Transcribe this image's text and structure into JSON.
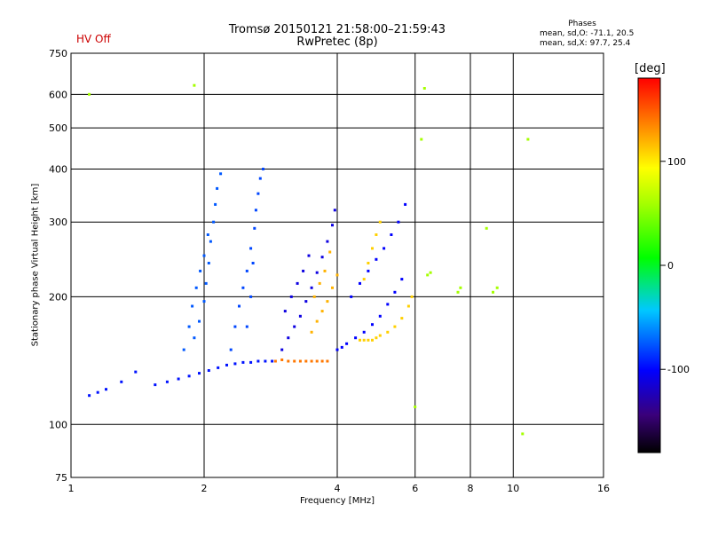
{
  "header": {
    "title_line1": "Tromsø 20150121 21:58:00–21:59:43",
    "title_line2": "RwPretec (8p)",
    "hv_status": "HV Off",
    "phase_title": "Phases",
    "phase_o": "mean, sd,O: -71.1, 20.5",
    "phase_x": "mean, sd,X:  97.7, 25.4"
  },
  "colorbar": {
    "unit": "[deg]",
    "ticks": [
      100,
      0,
      -100
    ],
    "range": [
      -180,
      180
    ],
    "colormap": "rainbow"
  },
  "chart_data": {
    "type": "scatter",
    "title": "Tromsø 20150121 21:58:00–21:59:43",
    "subtitle": "RwPretec (8p)",
    "xlabel": "Frequency [MHz]",
    "ylabel": "Stationary phase Virtual Height [km]",
    "x_scale": "log",
    "y_scale": "log",
    "xlim": [
      1,
      16
    ],
    "ylim": [
      75,
      750
    ],
    "x_ticks": [
      1,
      2,
      4,
      6,
      8,
      10,
      16
    ],
    "y_ticks": [
      75,
      100,
      200,
      300,
      400,
      500,
      600,
      750
    ],
    "grid": true,
    "series": [
      {
        "points": [
          [
            1.1,
            117
          ],
          [
            1.15,
            119
          ],
          [
            1.2,
            121
          ],
          [
            1.3,
            126
          ],
          [
            1.4,
            133
          ],
          [
            1.55,
            124
          ],
          [
            1.65,
            126
          ],
          [
            1.75,
            128
          ],
          [
            1.85,
            130
          ],
          [
            1.95,
            132
          ],
          [
            2.05,
            134
          ],
          [
            2.15,
            136
          ],
          [
            2.25,
            138
          ],
          [
            2.35,
            139
          ],
          [
            2.45,
            140
          ],
          [
            2.55,
            140
          ],
          [
            2.65,
            141
          ],
          [
            2.75,
            141
          ],
          [
            2.85,
            141
          ]
        ],
        "phase": -95
      },
      {
        "points": [
          [
            1.9,
            160
          ],
          [
            1.95,
            175
          ],
          [
            2.0,
            195
          ],
          [
            2.02,
            215
          ],
          [
            2.05,
            240
          ],
          [
            2.07,
            270
          ],
          [
            2.1,
            300
          ],
          [
            2.12,
            330
          ],
          [
            2.14,
            360
          ],
          [
            2.18,
            390
          ],
          [
            1.8,
            150
          ],
          [
            1.85,
            170
          ],
          [
            1.88,
            190
          ],
          [
            1.92,
            210
          ],
          [
            1.96,
            230
          ],
          [
            2.0,
            250
          ],
          [
            2.04,
            280
          ]
        ],
        "phase": -75
      },
      {
        "points": [
          [
            2.3,
            150
          ],
          [
            2.35,
            170
          ],
          [
            2.4,
            190
          ],
          [
            2.45,
            210
          ],
          [
            2.5,
            230
          ],
          [
            2.55,
            260
          ],
          [
            2.6,
            290
          ],
          [
            2.62,
            320
          ],
          [
            2.65,
            350
          ],
          [
            2.68,
            380
          ],
          [
            2.72,
            400
          ],
          [
            2.5,
            170
          ],
          [
            2.55,
            200
          ],
          [
            2.58,
            240
          ]
        ],
        "phase": -80
      },
      {
        "points": [
          [
            2.9,
            141
          ],
          [
            3.0,
            142
          ],
          [
            3.1,
            141
          ],
          [
            3.2,
            141
          ],
          [
            3.3,
            141
          ],
          [
            3.4,
            141
          ],
          [
            3.5,
            141
          ],
          [
            3.6,
            141
          ],
          [
            3.7,
            141
          ],
          [
            3.8,
            141
          ]
        ],
        "phase": 140
      },
      {
        "points": [
          [
            3.0,
            150
          ],
          [
            3.1,
            160
          ],
          [
            3.2,
            170
          ],
          [
            3.3,
            180
          ],
          [
            3.4,
            195
          ],
          [
            3.5,
            210
          ],
          [
            3.6,
            228
          ],
          [
            3.7,
            248
          ],
          [
            3.8,
            270
          ],
          [
            3.9,
            295
          ],
          [
            3.95,
            320
          ],
          [
            3.05,
            185
          ],
          [
            3.15,
            200
          ],
          [
            3.25,
            215
          ],
          [
            3.35,
            230
          ],
          [
            3.45,
            250
          ]
        ],
        "phase": -110
      },
      {
        "points": [
          [
            3.5,
            165
          ],
          [
            3.6,
            175
          ],
          [
            3.7,
            185
          ],
          [
            3.8,
            195
          ],
          [
            3.9,
            210
          ],
          [
            4.0,
            225
          ],
          [
            3.55,
            200
          ],
          [
            3.65,
            215
          ],
          [
            3.75,
            230
          ],
          [
            3.85,
            255
          ]
        ],
        "phase": 120
      },
      {
        "points": [
          [
            4.0,
            150
          ],
          [
            4.1,
            152
          ],
          [
            4.2,
            155
          ],
          [
            4.4,
            160
          ],
          [
            4.6,
            165
          ],
          [
            4.8,
            172
          ],
          [
            5.0,
            180
          ],
          [
            5.2,
            192
          ],
          [
            5.4,
            205
          ],
          [
            5.6,
            220
          ],
          [
            4.3,
            200
          ],
          [
            4.5,
            215
          ],
          [
            4.7,
            230
          ],
          [
            4.9,
            245
          ],
          [
            5.1,
            260
          ],
          [
            5.3,
            280
          ],
          [
            5.5,
            300
          ],
          [
            5.7,
            330
          ]
        ],
        "phase": -100
      },
      {
        "points": [
          [
            4.5,
            158
          ],
          [
            4.6,
            158
          ],
          [
            4.7,
            158
          ],
          [
            4.8,
            158
          ],
          [
            4.9,
            160
          ],
          [
            5.0,
            162
          ],
          [
            5.2,
            165
          ],
          [
            5.4,
            170
          ],
          [
            5.6,
            178
          ],
          [
            5.8,
            190
          ],
          [
            5.9,
            200
          ],
          [
            4.6,
            220
          ],
          [
            4.7,
            240
          ],
          [
            4.8,
            260
          ],
          [
            4.9,
            280
          ],
          [
            5.0,
            300
          ]
        ],
        "phase": 110
      },
      {
        "points": [
          [
            6.4,
            225
          ],
          [
            6.5,
            228
          ],
          [
            7.5,
            205
          ],
          [
            7.6,
            210
          ],
          [
            9.0,
            205
          ],
          [
            9.2,
            210
          ],
          [
            8.7,
            290
          ],
          [
            6.2,
            470
          ],
          [
            6.3,
            620
          ],
          [
            1.9,
            630
          ],
          [
            1.1,
            600
          ],
          [
            10.8,
            470
          ],
          [
            10.5,
            95
          ],
          [
            6.0,
            110
          ]
        ],
        "phase": 60
      }
    ]
  }
}
